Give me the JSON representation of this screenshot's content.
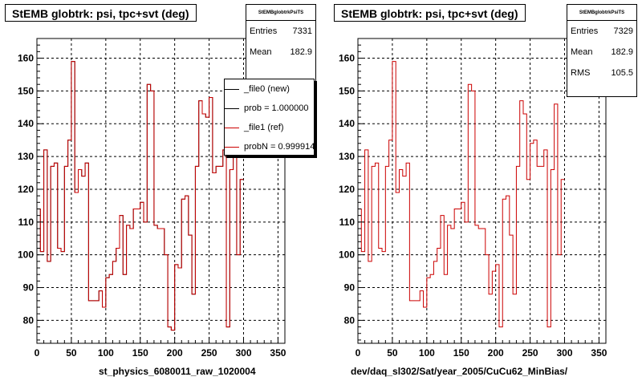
{
  "chart_data": [
    {
      "type": "histogram",
      "title": "StEMB globtrk: psi, tpc+svt (deg)",
      "xlabel": "st_physics_6080011_raw_1020004",
      "xlim": [
        0,
        360
      ],
      "ylim": [
        73,
        166
      ],
      "x_ticks": [
        0,
        50,
        100,
        150,
        200,
        250,
        300,
        350
      ],
      "y_ticks": [
        80,
        90,
        100,
        110,
        120,
        130,
        140,
        150,
        160
      ],
      "grid": true,
      "bin_width": 5,
      "values": [
        114,
        101,
        132,
        98,
        127,
        128,
        102,
        101,
        127,
        135,
        159,
        119,
        126,
        124,
        128,
        86,
        86,
        86,
        89,
        84,
        93,
        94,
        98,
        102,
        112,
        94,
        109,
        108,
        114,
        114,
        116,
        110,
        152,
        150,
        109,
        108,
        108,
        100,
        78,
        77,
        97,
        96,
        117,
        118,
        106,
        88,
        127,
        147,
        143,
        142,
        148,
        125,
        127,
        127,
        132,
        78,
        126,
        146,
        100,
        123
      ],
      "series": [
        {
          "name": "_file0 (new)",
          "color": "#000000"
        },
        {
          "name": "_file1 (ref)",
          "color": "#cc0000"
        }
      ],
      "legend": {
        "entries": [
          "_file0 (new)",
          "prob = 1.000000",
          "_file1 (ref)",
          "probN = 0.999914"
        ],
        "colors": [
          "#000000",
          "#000000",
          "#cc0000",
          "#cc0000"
        ],
        "placement": "top-right"
      },
      "stats": {
        "name": "StEMBglobtrkPsiTS",
        "entries_label": "Entries",
        "entries": "7331",
        "mean_label": "Mean",
        "mean": "182.9"
      }
    },
    {
      "type": "histogram",
      "title": "StEMB globtrk: psi, tpc+svt (deg)",
      "xlabel": "dev/daq_sl302/Sat/year_2005/CuCu62_MinBias/",
      "xlim": [
        0,
        360
      ],
      "ylim": [
        73,
        166
      ],
      "x_ticks": [
        0,
        50,
        100,
        150,
        200,
        250,
        300,
        350
      ],
      "y_ticks": [
        80,
        90,
        100,
        110,
        120,
        130,
        140,
        150,
        160
      ],
      "grid": true,
      "bin_width": 5,
      "values": [
        114,
        101,
        132,
        98,
        127,
        128,
        102,
        101,
        127,
        135,
        159,
        119,
        126,
        124,
        128,
        86,
        86,
        86,
        89,
        84,
        93,
        94,
        98,
        102,
        112,
        94,
        109,
        108,
        114,
        114,
        116,
        110,
        152,
        150,
        109,
        108,
        108,
        100,
        88,
        95,
        97,
        78,
        117,
        118,
        106,
        88,
        127,
        147,
        143,
        123,
        134,
        135,
        127,
        127,
        132,
        78,
        126,
        146,
        100,
        123
      ],
      "series": [
        {
          "name": "",
          "color": "#cc0000"
        }
      ],
      "stats": {
        "name": "StEMBglobtrkPsiTS",
        "entries_label": "Entries",
        "entries": "7329",
        "mean_label": "Mean",
        "mean": "182.9",
        "rms_label": "RMS",
        "rms": "105.5"
      }
    }
  ]
}
